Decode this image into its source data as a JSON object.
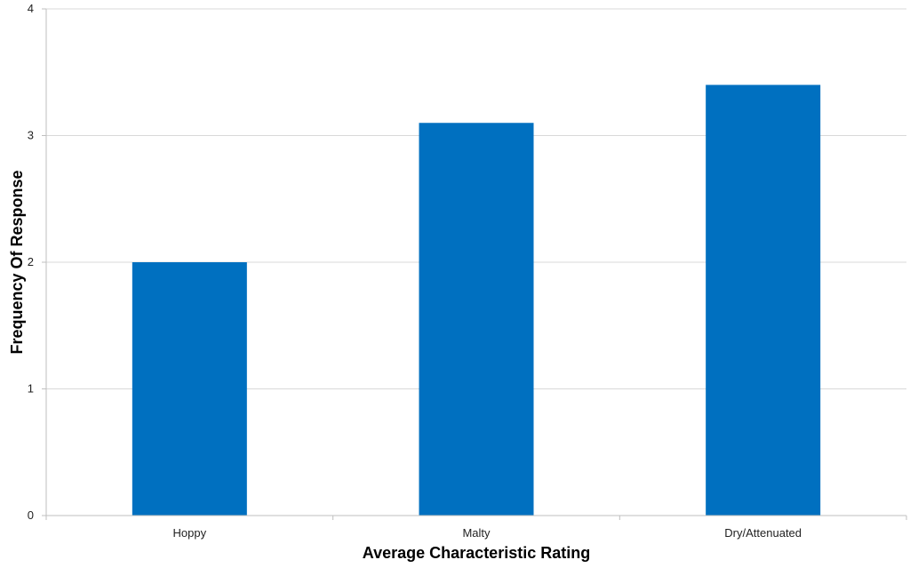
{
  "chart_data": {
    "type": "bar",
    "title": "",
    "xlabel": "Average Characteristic Rating",
    "ylabel": "Frequency Of Response",
    "categories": [
      "Hoppy",
      "Malty",
      "Dry/Attenuated"
    ],
    "series": [
      {
        "values": [
          2.0,
          3.1,
          3.4
        ]
      }
    ],
    "ylim": [
      0,
      4
    ],
    "yticks": [
      "0",
      "1",
      "2",
      "3",
      "4"
    ],
    "grid": true,
    "legend": "none",
    "colors": {
      "bar": "#0070c0",
      "grid": "#d9d9d9",
      "axis": "#bfbfbf"
    }
  }
}
